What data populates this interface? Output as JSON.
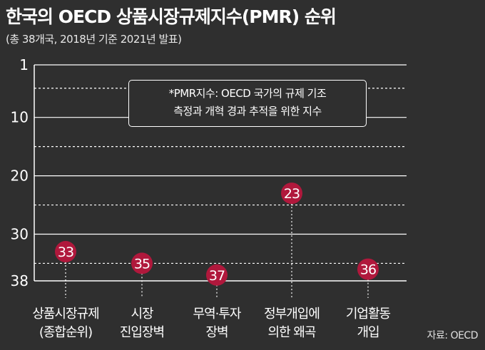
{
  "header": {
    "title": "한국의 OECD 상품시장규제지수(PMR) 순위",
    "subtitle": "(총 38개국, 2018년 기준 2021년 발표)"
  },
  "note": {
    "line1": "*PMR지수: OECD 국가의 규제 기조",
    "line2": "측정과 개혁 경과 추적을 위한 지수"
  },
  "source": "자료: OECD",
  "colors": {
    "background": "#2f2f2f",
    "marker": "#b0183c",
    "line": "#ffffff"
  },
  "chart_data": {
    "type": "scatter",
    "title": "한국의 OECD 상품시장규제지수(PMR) 순위",
    "subtitle": "(총 38개국, 2018년 기준 2021년 발표)",
    "y_axis": {
      "reversed": true,
      "ylim": [
        1,
        38
      ],
      "ticks": [
        "1",
        "10",
        "20",
        "30",
        "38"
      ],
      "tick_values": [
        1,
        10,
        20,
        30,
        38
      ],
      "dashed_grid_values": [
        5,
        15,
        25,
        35
      ]
    },
    "categories": [
      [
        "상품시장규제",
        "(종합순위)"
      ],
      [
        "시장",
        "진입장벽"
      ],
      [
        "무역·투자",
        "장벽"
      ],
      [
        "정부개입에",
        "의한 왜곡"
      ],
      [
        "기업활동",
        "개입"
      ]
    ],
    "values": [
      33,
      35,
      37,
      23,
      36
    ],
    "labels": [
      "33",
      "35",
      "37",
      "23",
      "36"
    ]
  }
}
